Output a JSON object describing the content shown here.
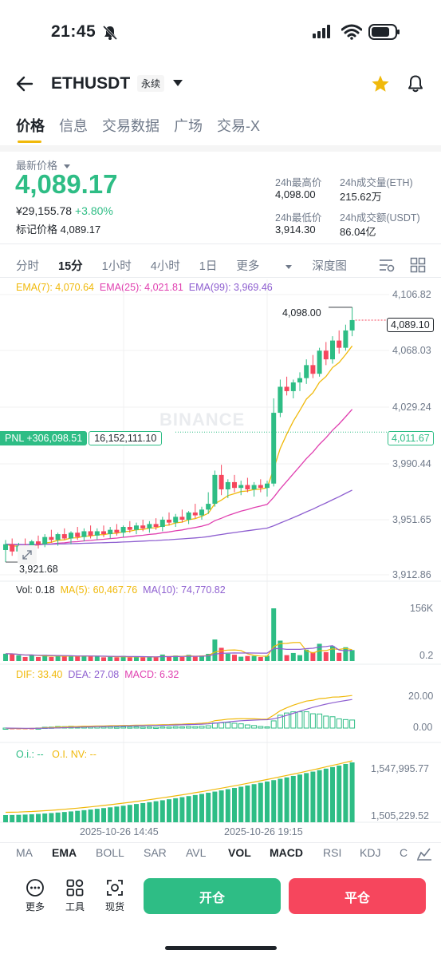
{
  "status_bar": {
    "time": "21:45"
  },
  "header": {
    "symbol": "ETHUSDT",
    "contract_type": "永续"
  },
  "tabs": [
    "价格",
    "信息",
    "交易数据",
    "广场",
    "交易-X"
  ],
  "ticker": {
    "last_label": "最新价格",
    "last_price": "4,089.17",
    "cny_price": "¥29,155.78",
    "change_pct": "+3.80%",
    "mark_label": "标记价格",
    "mark_price": "4,089.17",
    "high_label": "24h最高价",
    "high": "4,098.00",
    "low_label": "24h最低价",
    "low": "3,914.30",
    "vol_eth_label": "24h成交量(ETH)",
    "vol_eth": "215.62万",
    "vol_usdt_label": "24h成交额(USDT)",
    "vol_usdt": "86.04亿"
  },
  "intervals": [
    "分时",
    "15分",
    "1小时",
    "4小时",
    "1日",
    "更多",
    "深度图"
  ],
  "chart_data": {
    "type": "candlestick",
    "interval": "15分",
    "ema_legend": {
      "ema7": "EMA(7): 4,070.64",
      "ema25": "EMA(25): 4,021.81",
      "ema99": "EMA(99): 3,969.46"
    },
    "y_ticks": [
      "4,106.82",
      "4,068.03",
      "4,029.24",
      "3,990.44",
      "3,951.65",
      "3,912.86"
    ],
    "ylim": [
      3912.86,
      4106.82
    ],
    "high_marker": "4,098.00",
    "low_marker": "3,921.68",
    "last_price_tag": "4,089.10",
    "pnl_label": "PNL +306,098.51",
    "pnl_value": "16,152,111.10",
    "pnl_price": "4,011.67",
    "watermark": "BINANCE",
    "candles": [
      [
        3930,
        3937,
        3921.68,
        3934
      ],
      [
        3934,
        3938,
        3926,
        3929
      ],
      [
        3929,
        3935,
        3925,
        3933
      ],
      [
        3933,
        3938,
        3929,
        3931
      ],
      [
        3931,
        3937,
        3928,
        3936
      ],
      [
        3936,
        3940,
        3931,
        3934
      ],
      [
        3934,
        3941,
        3932,
        3939
      ],
      [
        3939,
        3944,
        3935,
        3937
      ],
      [
        3937,
        3942,
        3933,
        3941
      ],
      [
        3941,
        3945,
        3937,
        3938
      ],
      [
        3938,
        3943,
        3934,
        3942
      ],
      [
        3942,
        3946,
        3937,
        3939
      ],
      [
        3939,
        3945,
        3936,
        3943
      ],
      [
        3943,
        3947,
        3938,
        3940
      ],
      [
        3940,
        3945,
        3937,
        3943
      ],
      [
        3943,
        3947,
        3939,
        3941
      ],
      [
        3941,
        3946,
        3938,
        3944
      ],
      [
        3944,
        3948,
        3940,
        3942
      ],
      [
        3942,
        3947,
        3939,
        3946
      ],
      [
        3946,
        3950,
        3942,
        3944
      ],
      [
        3944,
        3949,
        3941,
        3947
      ],
      [
        3947,
        3951,
        3943,
        3945
      ],
      [
        3945,
        3950,
        3942,
        3948
      ],
      [
        3948,
        3952,
        3944,
        3946
      ],
      [
        3946,
        3953,
        3943,
        3951
      ],
      [
        3951,
        3956,
        3947,
        3949
      ],
      [
        3949,
        3955,
        3946,
        3953
      ],
      [
        3953,
        3958,
        3949,
        3951
      ],
      [
        3951,
        3957,
        3948,
        3956
      ],
      [
        3956,
        3962,
        3952,
        3954
      ],
      [
        3954,
        3960,
        3951,
        3958
      ],
      [
        3958,
        3970,
        3955,
        3962
      ],
      [
        3962,
        3985,
        3960,
        3982
      ],
      [
        3982,
        3989,
        3968,
        3972
      ],
      [
        3972,
        3979,
        3966,
        3977
      ],
      [
        3977,
        3982,
        3970,
        3973
      ],
      [
        3973,
        3978,
        3968,
        3975
      ],
      [
        3975,
        3980,
        3970,
        3972
      ],
      [
        3972,
        3977,
        3967,
        3975
      ],
      [
        3975,
        3979,
        3970,
        3973
      ],
      [
        3973,
        3978,
        3967,
        3976
      ],
      [
        3976,
        4035,
        3974,
        4025
      ],
      [
        4025,
        4048,
        4022,
        4043
      ],
      [
        4043,
        4050,
        4037,
        4040
      ],
      [
        4040,
        4048,
        4035,
        4046
      ],
      [
        4046,
        4053,
        4040,
        4049
      ],
      [
        4049,
        4062,
        4045,
        4058
      ],
      [
        4058,
        4065,
        4049,
        4052
      ],
      [
        4052,
        4070,
        4050,
        4068
      ],
      [
        4068,
        4074,
        4058,
        4062
      ],
      [
        4062,
        4078,
        4059,
        4075
      ],
      [
        4075,
        4082,
        4066,
        4070
      ],
      [
        4070,
        4086,
        4068,
        4082
      ],
      [
        4082,
        4098,
        4078,
        4089.17
      ]
    ],
    "volume_legend": {
      "vol": "Vol: 0.18",
      "ma5": "MA(5): 60,467.76",
      "ma10": "MA(10): 74,770.82"
    },
    "volume_ticks": [
      "156K",
      "0.2"
    ],
    "macd_legend": {
      "dif": "DIF: 33.40",
      "dea": "DEA: 27.08",
      "macd": "MACD: 6.32"
    },
    "macd_ticks": [
      "20.00",
      "0.00"
    ],
    "oi_legend": {
      "oi": "O.i.: --",
      "oinv": "O.I. NV: --"
    },
    "oi_ticks": [
      "1,547,995.77",
      "1,505,229.52"
    ],
    "x_ticks": [
      "2025-10-26 14:45",
      "2025-10-26 19:15"
    ]
  },
  "indicators": [
    "MA",
    "EMA",
    "BOLL",
    "SAR",
    "AVL",
    "VOL",
    "MACD",
    "RSI",
    "KDJ",
    "C"
  ],
  "bottom": {
    "more": "更多",
    "tools": "工具",
    "spot": "现货",
    "open": "开仓",
    "close": "平仓"
  },
  "colors": {
    "up": "#2ebd85",
    "down": "#f6465d",
    "ema7": "#f0b90b",
    "ema25": "#e040b0",
    "ema99": "#8e5fd0",
    "accent": "#f0b90b"
  }
}
